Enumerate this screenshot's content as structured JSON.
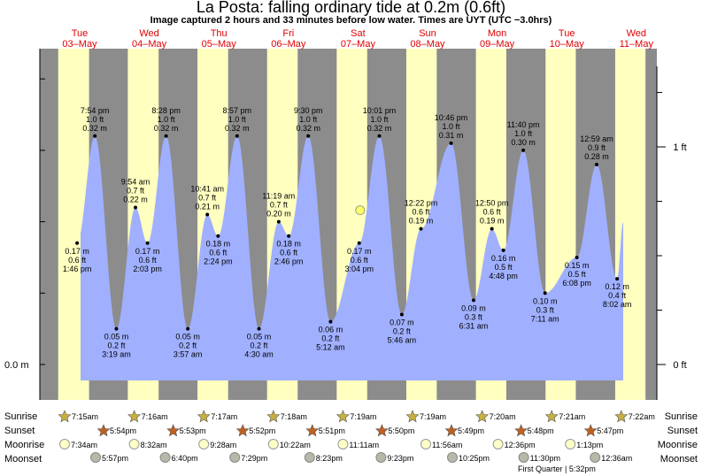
{
  "header": {
    "title": "La Posta: falling  ordinary tide at 0.2m (0.6ft)",
    "subtitle": "Image captured 2 hours and 33 minutes before low water. Times are UYT (UTC −3.0hrs)"
  },
  "colors": {
    "night": "#8c8c8c",
    "day": "#ffffc0",
    "water": "#a0b0ff",
    "day_label": "#e00000",
    "now_marker": "#ffff66"
  },
  "days": [
    {
      "dow": "Tue",
      "date": "03–May"
    },
    {
      "dow": "Wed",
      "date": "04–May"
    },
    {
      "dow": "Thu",
      "date": "05–May"
    },
    {
      "dow": "Fri",
      "date": "06–May"
    },
    {
      "dow": "Sat",
      "date": "07–May"
    },
    {
      "dow": "Sun",
      "date": "08–May"
    },
    {
      "dow": "Mon",
      "date": "09–May"
    },
    {
      "dow": "Tue",
      "date": "10–May"
    },
    {
      "dow": "Wed",
      "date": "11–May"
    }
  ],
  "axes": {
    "left_label": "0.0 m",
    "right_labels": [
      "0 ft",
      "1 ft"
    ]
  },
  "chart_data": {
    "type": "area",
    "title": "La Posta: falling  ordinary tide at 0.2m (0.6ft)",
    "x_unit": "date/time (UYT)",
    "y_unit": "m",
    "ylim": [
      -0.013,
      0.425
    ],
    "now": {
      "date": "2022-05-07",
      "time": "15:23",
      "height_m": 0.2
    },
    "points": [
      {
        "date": "03-May",
        "time": "1:46 pm",
        "m": "0.17 m",
        "ft": "0.6 ft",
        "h": 0.17,
        "kind": "low"
      },
      {
        "date": "03-May",
        "time": "7:54 pm",
        "m": "0.32 m",
        "ft": "1.0 ft",
        "h": 0.32,
        "kind": "high"
      },
      {
        "date": "04-May",
        "time": "3:19 am",
        "m": "0.05 m",
        "ft": "0.2 ft",
        "h": 0.05,
        "kind": "low"
      },
      {
        "date": "04-May",
        "time": "9:54 am",
        "m": "0.22 m",
        "ft": "0.7 ft",
        "h": 0.22,
        "kind": "high"
      },
      {
        "date": "04-May",
        "time": "2:03 pm",
        "m": "0.17 m",
        "ft": "0.6 ft",
        "h": 0.17,
        "kind": "low"
      },
      {
        "date": "04-May",
        "time": "8:28 pm",
        "m": "0.32 m",
        "ft": "1.0 ft",
        "h": 0.32,
        "kind": "high"
      },
      {
        "date": "05-May",
        "time": "3:57 am",
        "m": "0.05 m",
        "ft": "0.2 ft",
        "h": 0.05,
        "kind": "low"
      },
      {
        "date": "05-May",
        "time": "10:41 am",
        "m": "0.21 m",
        "ft": "0.7 ft",
        "h": 0.21,
        "kind": "high"
      },
      {
        "date": "05-May",
        "time": "2:24 pm",
        "m": "0.18 m",
        "ft": "0.6 ft",
        "h": 0.18,
        "kind": "low"
      },
      {
        "date": "05-May",
        "time": "8:57 pm",
        "m": "0.32 m",
        "ft": "1.0 ft",
        "h": 0.32,
        "kind": "high"
      },
      {
        "date": "06-May",
        "time": "4:30 am",
        "m": "0.05 m",
        "ft": "0.2 ft",
        "h": 0.05,
        "kind": "low"
      },
      {
        "date": "06-May",
        "time": "11:19 am",
        "m": "0.20 m",
        "ft": "0.7 ft",
        "h": 0.2,
        "kind": "high"
      },
      {
        "date": "06-May",
        "time": "2:46 pm",
        "m": "0.18 m",
        "ft": "0.6 ft",
        "h": 0.18,
        "kind": "low"
      },
      {
        "date": "06-May",
        "time": "9:30 pm",
        "m": "0.32 m",
        "ft": "1.0 ft",
        "h": 0.32,
        "kind": "high"
      },
      {
        "date": "07-May",
        "time": "5:12 am",
        "m": "0.06 m",
        "ft": "0.2 ft",
        "h": 0.06,
        "kind": "low"
      },
      {
        "date": "07-May",
        "time": "3:04 pm",
        "m": "0.17 m",
        "ft": "0.6 ft",
        "h": 0.17,
        "kind": "low"
      },
      {
        "date": "07-May",
        "time": "10:01 pm",
        "m": "0.32 m",
        "ft": "1.0 ft",
        "h": 0.32,
        "kind": "high"
      },
      {
        "date": "08-May",
        "time": "5:46 am",
        "m": "0.07 m",
        "ft": "0.2 ft",
        "h": 0.07,
        "kind": "low"
      },
      {
        "date": "08-May",
        "time": "12:22 pm",
        "m": "0.19 m",
        "ft": "0.6 ft",
        "h": 0.19,
        "kind": "high"
      },
      {
        "date": "08-May",
        "time": "10:46 pm",
        "m": "0.31 m",
        "ft": "1.0 ft",
        "h": 0.31,
        "kind": "high"
      },
      {
        "date": "09-May",
        "time": "6:31 am",
        "m": "0.09 m",
        "ft": "0.3 ft",
        "h": 0.09,
        "kind": "low"
      },
      {
        "date": "09-May",
        "time": "12:50 pm",
        "m": "0.19 m",
        "ft": "0.6 ft",
        "h": 0.19,
        "kind": "high"
      },
      {
        "date": "09-May",
        "time": "4:48 pm",
        "m": "0.16 m",
        "ft": "0.5 ft",
        "h": 0.16,
        "kind": "low"
      },
      {
        "date": "09-May",
        "time": "11:40 pm",
        "m": "0.30 m",
        "ft": "1.0 ft",
        "h": 0.3,
        "kind": "high"
      },
      {
        "date": "10-May",
        "time": "7:11 am",
        "m": "0.10 m",
        "ft": "0.3 ft",
        "h": 0.1,
        "kind": "low"
      },
      {
        "date": "10-May",
        "time": "6:08 pm",
        "m": "0.15 m",
        "ft": "0.5 ft",
        "h": 0.15,
        "kind": "low"
      },
      {
        "date": "11-May",
        "time": "12:59 am",
        "m": "0.28 m",
        "ft": "0.9 ft",
        "h": 0.28,
        "kind": "high"
      },
      {
        "date": "11-May",
        "time": "8:02 am",
        "m": "0.12 m",
        "ft": "0.4 ft",
        "h": 0.12,
        "kind": "low"
      }
    ]
  },
  "sun_moon": {
    "labels": {
      "sunrise": "Sunrise",
      "sunset": "Sunset",
      "moonrise": "Moonrise",
      "moonset": "Moonset"
    },
    "sunrise": [
      "7:15am",
      "7:16am",
      "7:17am",
      "7:18am",
      "7:19am",
      "7:19am",
      "7:20am",
      "7:21am",
      "7:22am"
    ],
    "sunset": [
      "5:54pm",
      "5:53pm",
      "5:52pm",
      "5:51pm",
      "5:50pm",
      "5:49pm",
      "5:48pm",
      "5:47pm"
    ],
    "moonrise": [
      "7:34am",
      "8:32am",
      "9:28am",
      "10:22am",
      "11:11am",
      "11:56am",
      "12:36pm",
      "1:13pm"
    ],
    "moonset": [
      "5:57pm",
      "6:40pm",
      "7:29pm",
      "8:23pm",
      "9:23pm",
      "10:25pm",
      "11:30pm",
      "12:36am"
    ],
    "phase_note": "First Quarter | 5:32pm"
  }
}
